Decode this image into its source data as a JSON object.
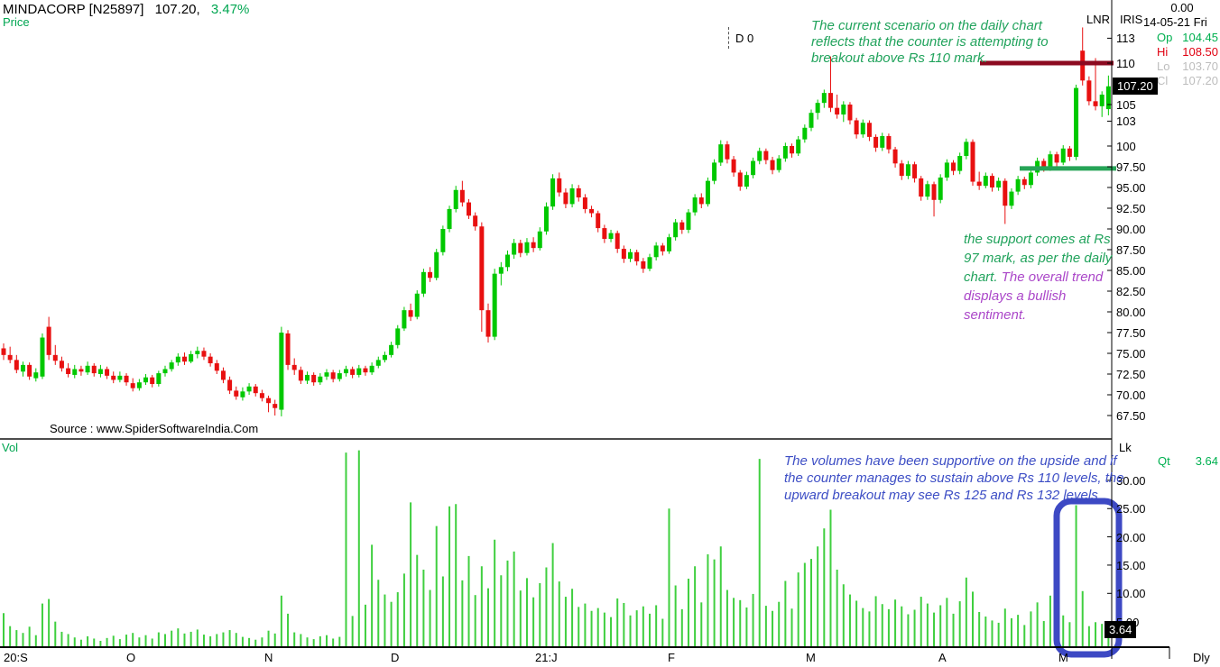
{
  "header": {
    "symbol": "MINDACORP [N25897]",
    "last": "107.20,",
    "change_pct": "3.47%",
    "panel_label": "Price",
    "volume_panel_label": "Vol"
  },
  "indicators": {
    "left": "LNR",
    "right": "IRIS"
  },
  "quote": {
    "value_top": "0.00",
    "date": "14-05-21 Fri",
    "rows": [
      {
        "label": "Op",
        "value": "104.45",
        "tone": "green"
      },
      {
        "label": "Hi",
        "value": "108.50",
        "tone": "red"
      },
      {
        "label": "Lo",
        "value": "103.70",
        "tone": "gray"
      },
      {
        "label": "Cl",
        "value": "107.20",
        "tone": "gray"
      }
    ]
  },
  "cursor_readout": "D 0",
  "source": "Source : www.SpiderSoftwareIndia.Com",
  "annotations": {
    "breakout": {
      "color": "#21a35c",
      "lines": [
        "The current scenario on the daily chart",
        "reflects that the counter is attempting to",
        "breakout above Rs 110 mark."
      ]
    },
    "support": {
      "green_color": "#21a35c",
      "purple_color": "#ab47c9",
      "lines": [
        [
          {
            "t": "the support comes at Rs",
            "c": "green"
          }
        ],
        [
          {
            "t": "97 mark, as per the daily",
            "c": "green"
          }
        ],
        [
          {
            "t": "chart. ",
            "c": "green"
          },
          {
            "t": "The overall trend",
            "c": "purple"
          }
        ],
        [
          {
            "t": "displays a bullish",
            "c": "purple"
          }
        ],
        [
          {
            "t": "sentiment.",
            "c": "purple"
          }
        ]
      ]
    },
    "volumes": {
      "color": "#3d4ec5",
      "lines": [
        "The volumes have been supportive on the upside and if",
        "the counter manages to sustain above Rs 110 levels, the",
        "upward breakout may see Rs 125 and Rs 132 levels"
      ]
    }
  },
  "price_axis": {
    "last_price_tag": "107.20",
    "ticks": [
      {
        "v": 113,
        "label": "113"
      },
      {
        "v": 110,
        "label": "110"
      },
      {
        "v": 105,
        "label": "105"
      },
      {
        "v": 103,
        "label": "103"
      },
      {
        "v": 100,
        "label": "100"
      },
      {
        "v": 97.5,
        "label": "97.50"
      },
      {
        "v": 95,
        "label": "95.00"
      },
      {
        "v": 92.5,
        "label": "92.50"
      },
      {
        "v": 90,
        "label": "90.00"
      },
      {
        "v": 87.5,
        "label": "87.50"
      },
      {
        "v": 85,
        "label": "85.00"
      },
      {
        "v": 82.5,
        "label": "82.50"
      },
      {
        "v": 80,
        "label": "80.00"
      },
      {
        "v": 77.5,
        "label": "77.50"
      },
      {
        "v": 75,
        "label": "75.00"
      },
      {
        "v": 72.5,
        "label": "72.50"
      },
      {
        "v": 70,
        "label": "70.00"
      },
      {
        "v": 67.5,
        "label": "67.50"
      }
    ]
  },
  "volume_axis": {
    "unit": "Lk",
    "qt_label": "Qt",
    "qt_value": "3.64",
    "last_volume_tag": "3.64",
    "ticks": [
      {
        "v": 30,
        "label": "30.00"
      },
      {
        "v": 25,
        "label": "25.00"
      },
      {
        "v": 20,
        "label": "20.00"
      },
      {
        "v": 15,
        "label": "15.00"
      },
      {
        "v": 10,
        "label": "10.00"
      },
      {
        "v": 5,
        "label": "5.00"
      }
    ]
  },
  "x_axis": {
    "labels": [
      "20:S",
      "O",
      "N",
      "D",
      "21:J",
      "F",
      "M",
      "A",
      "M"
    ],
    "period": "Dly"
  },
  "colors": {
    "candle_up": "#00c800",
    "candle_down": "#e81010",
    "volume_bar": "#3fcf3f",
    "resistance_line": "#8c0a20",
    "support_line": "#26a457",
    "highlight_box": "#3d49c4",
    "change_green": "#00a651"
  },
  "chart_data": {
    "type": "candlestick+volume",
    "title": "MINDACORP [N25897] daily chart with volume (Lk)",
    "timeframe": "Dly",
    "x_axis_months": [
      "Sep-20",
      "Oct-20",
      "Nov-20",
      "Dec-20",
      "Jan-21",
      "Feb-21",
      "Mar-21",
      "Apr-21",
      "May-21"
    ],
    "price_range": [
      67.5,
      113
    ],
    "volume_range_lk": [
      0,
      30
    ],
    "levels": {
      "resistance": 110,
      "support": 97.3
    },
    "highlight": {
      "type": "rounded-rect",
      "color": "#3d49c4",
      "range": "last 9 volume bars"
    },
    "last_close": 107.2,
    "last_volume_lk": 3.64,
    "columns": [
      "open",
      "high",
      "low",
      "close",
      "volume_lk"
    ],
    "candles": [
      [
        75.6,
        76.2,
        74.2,
        74.8,
        6.5
      ],
      [
        74.8,
        75.8,
        73.8,
        74.2,
        4.2
      ],
      [
        74.2,
        74.8,
        72.6,
        73.0,
        3.5
      ],
      [
        72.8,
        74.0,
        72.2,
        73.6,
        3.0
      ],
      [
        73.6,
        73.9,
        71.8,
        72.2,
        4.1
      ],
      [
        72.0,
        73.2,
        71.6,
        72.7,
        2.6
      ],
      [
        72.2,
        77.4,
        71.9,
        76.9,
        8.2
      ],
      [
        78.2,
        79.4,
        74.2,
        74.8,
        9.0
      ],
      [
        74.8,
        76.0,
        73.6,
        74.1,
        5.0
      ],
      [
        74.1,
        74.6,
        72.8,
        73.2,
        3.2
      ],
      [
        73.2,
        73.8,
        72.1,
        72.5,
        2.8
      ],
      [
        72.4,
        73.6,
        72.0,
        73.1,
        2.2
      ],
      [
        73.1,
        73.5,
        72.3,
        72.8,
        1.8
      ],
      [
        72.7,
        74.0,
        72.4,
        73.5,
        2.4
      ],
      [
        73.5,
        73.8,
        72.2,
        72.6,
        2.0
      ],
      [
        72.5,
        73.6,
        72.1,
        73.1,
        1.6
      ],
      [
        73.1,
        73.4,
        71.9,
        72.3,
        2.1
      ],
      [
        72.3,
        72.8,
        71.4,
        71.8,
        2.5
      ],
      [
        71.8,
        72.8,
        71.5,
        72.3,
        1.9
      ],
      [
        72.3,
        72.6,
        71.1,
        71.5,
        2.7
      ],
      [
        71.4,
        72.0,
        70.4,
        70.8,
        3.0
      ],
      [
        70.8,
        71.9,
        70.5,
        71.5,
        2.2
      ],
      [
        71.5,
        72.5,
        71.2,
        72.1,
        2.6
      ],
      [
        72.1,
        72.4,
        70.9,
        71.3,
        2.0
      ],
      [
        71.3,
        72.9,
        71.0,
        72.6,
        3.1
      ],
      [
        72.6,
        73.5,
        72.2,
        73.1,
        2.8
      ],
      [
        73.1,
        74.2,
        72.8,
        73.9,
        3.4
      ],
      [
        73.9,
        75.0,
        73.5,
        74.6,
        3.8
      ],
      [
        74.6,
        75.1,
        73.6,
        74.0,
        2.9
      ],
      [
        74.0,
        75.3,
        73.8,
        74.9,
        3.2
      ],
      [
        74.9,
        75.8,
        74.4,
        75.3,
        3.6
      ],
      [
        75.3,
        75.7,
        74.2,
        74.6,
        2.7
      ],
      [
        74.6,
        75.0,
        73.4,
        73.8,
        2.4
      ],
      [
        73.8,
        74.2,
        72.5,
        72.9,
        2.8
      ],
      [
        72.9,
        73.3,
        71.4,
        71.8,
        3.1
      ],
      [
        71.8,
        72.2,
        70.1,
        70.5,
        3.5
      ],
      [
        70.5,
        71.0,
        69.4,
        69.8,
        3.0
      ],
      [
        69.7,
        70.9,
        69.3,
        70.4,
        2.3
      ],
      [
        70.4,
        71.4,
        70.0,
        71.0,
        2.1
      ],
      [
        71.0,
        71.3,
        69.8,
        70.2,
        1.8
      ],
      [
        70.2,
        70.6,
        69.2,
        69.6,
        2.2
      ],
      [
        69.6,
        69.9,
        67.9,
        69.0,
        3.4
      ],
      [
        68.9,
        69.4,
        67.5,
        68.4,
        2.9
      ],
      [
        68.2,
        78.2,
        67.4,
        77.5,
        9.6
      ],
      [
        77.4,
        77.8,
        73.0,
        73.6,
        6.4
      ],
      [
        73.6,
        74.4,
        72.4,
        73.0,
        3.1
      ],
      [
        73.0,
        73.4,
        71.3,
        71.7,
        2.8
      ],
      [
        71.7,
        72.8,
        71.3,
        72.4,
        2.2
      ],
      [
        72.4,
        72.7,
        71.1,
        71.5,
        1.9
      ],
      [
        71.5,
        72.6,
        71.2,
        72.2,
        2.4
      ],
      [
        72.2,
        73.1,
        71.8,
        72.7,
        2.6
      ],
      [
        72.7,
        73.0,
        71.5,
        71.9,
        2.0
      ],
      [
        71.9,
        73.0,
        71.6,
        72.6,
        2.3
      ],
      [
        72.6,
        73.5,
        72.2,
        73.1,
        34.9
      ],
      [
        73.1,
        73.4,
        72.0,
        72.4,
        6.0
      ],
      [
        72.4,
        73.6,
        72.1,
        73.2,
        35.3
      ],
      [
        73.2,
        73.5,
        72.3,
        72.7,
        8.0
      ],
      [
        72.7,
        73.9,
        72.4,
        73.5,
        18.6
      ],
      [
        73.5,
        74.6,
        73.2,
        74.2,
        12.4
      ],
      [
        74.2,
        75.2,
        73.9,
        74.8,
        9.8
      ],
      [
        74.8,
        76.4,
        74.5,
        76.0,
        8.5
      ],
      [
        76.0,
        78.4,
        75.6,
        78.0,
        10.2
      ],
      [
        78.0,
        80.6,
        77.7,
        80.2,
        13.5
      ],
      [
        80.2,
        81.0,
        78.9,
        79.4,
        26.1
      ],
      [
        79.4,
        82.6,
        79.1,
        82.2,
        16.8
      ],
      [
        82.2,
        85.2,
        81.8,
        84.8,
        14.2
      ],
      [
        84.8,
        85.4,
        83.6,
        84.1,
        10.6
      ],
      [
        84.1,
        87.6,
        83.8,
        87.2,
        21.9
      ],
      [
        87.2,
        90.4,
        86.8,
        90.0,
        13.0
      ],
      [
        90.0,
        92.8,
        89.6,
        92.4,
        25.4
      ],
      [
        92.4,
        95.2,
        92.0,
        94.7,
        25.8
      ],
      [
        94.7,
        95.8,
        92.7,
        93.2,
        12.3
      ],
      [
        93.2,
        93.6,
        91.2,
        91.6,
        16.6
      ],
      [
        91.6,
        92.0,
        89.8,
        90.3,
        9.7
      ],
      [
        90.3,
        90.8,
        77.6,
        80.2,
        14.8
      ],
      [
        80.2,
        81.0,
        76.3,
        77.0,
        10.9
      ],
      [
        77.0,
        85.2,
        76.6,
        84.6,
        19.5
      ],
      [
        84.6,
        86.0,
        83.2,
        85.4,
        13.2
      ],
      [
        85.4,
        87.4,
        84.9,
        86.9,
        15.8
      ],
      [
        86.9,
        88.8,
        86.4,
        88.3,
        17.4
      ],
      [
        88.3,
        88.7,
        86.6,
        87.1,
        10.5
      ],
      [
        87.1,
        88.9,
        86.8,
        88.4,
        12.7
      ],
      [
        88.4,
        89.0,
        87.2,
        87.7,
        9.3
      ],
      [
        87.7,
        90.2,
        87.4,
        89.7,
        11.8
      ],
      [
        89.7,
        93.2,
        89.3,
        92.7,
        14.6
      ],
      [
        92.7,
        96.6,
        92.3,
        96.1,
        18.9
      ],
      [
        96.1,
        96.8,
        93.9,
        94.4,
        12.1
      ],
      [
        94.4,
        94.9,
        92.5,
        93.0,
        9.4
      ],
      [
        93.0,
        95.4,
        92.6,
        94.9,
        10.8
      ],
      [
        94.9,
        95.3,
        93.3,
        93.8,
        7.6
      ],
      [
        93.8,
        94.2,
        91.9,
        92.4,
        8.2
      ],
      [
        92.4,
        92.8,
        91.4,
        91.9,
        6.9
      ],
      [
        91.9,
        92.2,
        89.6,
        90.1,
        7.4
      ],
      [
        90.1,
        90.5,
        88.3,
        88.8,
        6.6
      ],
      [
        88.8,
        89.9,
        88.4,
        89.5,
        5.8
      ],
      [
        89.5,
        89.8,
        87.1,
        87.6,
        9.1
      ],
      [
        87.6,
        88.0,
        85.9,
        86.4,
        8.3
      ],
      [
        86.4,
        87.6,
        86.0,
        87.2,
        6.1
      ],
      [
        87.2,
        87.5,
        85.6,
        86.1,
        7.0
      ],
      [
        86.1,
        86.5,
        84.7,
        85.2,
        7.7
      ],
      [
        85.2,
        87.0,
        84.9,
        86.6,
        6.4
      ],
      [
        86.6,
        88.4,
        86.2,
        88.0,
        7.9
      ],
      [
        88.0,
        88.3,
        86.8,
        87.3,
        5.5
      ],
      [
        87.3,
        89.4,
        87.0,
        89.0,
        25.0
      ],
      [
        89.0,
        91.2,
        88.6,
        90.8,
        11.4
      ],
      [
        90.8,
        91.1,
        89.4,
        89.9,
        7.2
      ],
      [
        89.9,
        92.4,
        89.5,
        92.0,
        12.6
      ],
      [
        92.0,
        94.2,
        91.6,
        93.8,
        14.8
      ],
      [
        93.8,
        94.3,
        92.5,
        93.0,
        8.4
      ],
      [
        93.0,
        96.2,
        92.7,
        95.8,
        16.9
      ],
      [
        95.8,
        98.4,
        95.4,
        98.0,
        16.0
      ],
      [
        98.0,
        100.7,
        97.6,
        100.2,
        18.3
      ],
      [
        100.2,
        100.6,
        97.9,
        98.4,
        10.6
      ],
      [
        98.4,
        98.8,
        96.3,
        96.8,
        9.2
      ],
      [
        96.8,
        97.1,
        94.6,
        95.1,
        8.8
      ],
      [
        95.1,
        96.9,
        94.8,
        96.5,
        7.5
      ],
      [
        96.5,
        98.6,
        96.1,
        98.2,
        9.9
      ],
      [
        98.2,
        99.8,
        97.8,
        99.4,
        33.8
      ],
      [
        99.4,
        99.7,
        97.8,
        98.3,
        7.8
      ],
      [
        98.3,
        98.7,
        96.6,
        97.1,
        6.9
      ],
      [
        97.1,
        98.9,
        96.8,
        98.5,
        8.5
      ],
      [
        98.5,
        100.4,
        98.1,
        100.0,
        12.2
      ],
      [
        100.0,
        100.3,
        98.6,
        99.1,
        7.3
      ],
      [
        99.1,
        101.2,
        98.8,
        100.8,
        13.7
      ],
      [
        100.8,
        102.6,
        100.4,
        102.2,
        15.4
      ],
      [
        102.2,
        104.4,
        101.8,
        104.0,
        16.1
      ],
      [
        104.0,
        105.6,
        103.2,
        105.2,
        18.3
      ],
      [
        105.2,
        106.8,
        104.6,
        106.4,
        21.5
      ],
      [
        106.4,
        110.8,
        104.1,
        104.6,
        24.8
      ],
      [
        104.6,
        106.2,
        103.3,
        103.8,
        14.2
      ],
      [
        103.8,
        105.4,
        102.9,
        105.0,
        11.6
      ],
      [
        105.0,
        105.3,
        102.6,
        103.1,
        9.8
      ],
      [
        103.1,
        103.4,
        100.9,
        101.4,
        8.7
      ],
      [
        101.4,
        103.2,
        101.0,
        102.8,
        7.4
      ],
      [
        102.8,
        103.1,
        100.6,
        101.1,
        6.8
      ],
      [
        101.1,
        101.4,
        99.3,
        99.8,
        9.5
      ],
      [
        99.8,
        101.6,
        99.4,
        101.2,
        8.1
      ],
      [
        101.2,
        101.5,
        99.1,
        99.6,
        7.2
      ],
      [
        99.6,
        99.9,
        97.4,
        97.9,
        8.9
      ],
      [
        97.9,
        98.3,
        95.9,
        96.4,
        7.7
      ],
      [
        96.4,
        98.2,
        96.0,
        97.8,
        6.3
      ],
      [
        97.8,
        98.1,
        95.6,
        96.1,
        7.1
      ],
      [
        96.1,
        96.4,
        93.4,
        93.9,
        9.4
      ],
      [
        93.9,
        95.8,
        93.5,
        95.4,
        8.2
      ],
      [
        95.4,
        95.7,
        91.5,
        93.5,
        6.6
      ],
      [
        93.5,
        96.6,
        93.1,
        96.2,
        7.9
      ],
      [
        96.2,
        98.4,
        95.8,
        98.0,
        9.2
      ],
      [
        98.0,
        98.3,
        96.5,
        97.0,
        6.4
      ],
      [
        97.0,
        99.2,
        96.6,
        98.8,
        8.6
      ],
      [
        98.8,
        100.9,
        98.4,
        100.5,
        12.8
      ],
      [
        100.5,
        100.8,
        95.2,
        95.7,
        10.3
      ],
      [
        95.7,
        96.9,
        94.7,
        95.2,
        6.7
      ],
      [
        95.2,
        96.8,
        94.9,
        96.4,
        5.9
      ],
      [
        96.4,
        96.7,
        94.5,
        95.0,
        5.2
      ],
      [
        95.0,
        96.2,
        94.6,
        95.8,
        4.8
      ],
      [
        95.8,
        96.1,
        90.6,
        92.8,
        7.3
      ],
      [
        92.8,
        94.9,
        92.4,
        94.5,
        5.6
      ],
      [
        94.5,
        96.4,
        94.1,
        96.0,
        6.2
      ],
      [
        96.0,
        96.3,
        94.8,
        95.3,
        4.4
      ],
      [
        95.3,
        97.2,
        94.9,
        96.8,
        6.8
      ],
      [
        96.8,
        98.6,
        96.4,
        98.2,
        8.4
      ],
      [
        98.2,
        98.5,
        96.9,
        97.4,
        5.1
      ],
      [
        97.4,
        99.4,
        97.0,
        99.0,
        9.6
      ],
      [
        99.0,
        99.3,
        97.5,
        98.0,
        5.7
      ],
      [
        98.0,
        100.1,
        97.7,
        99.7,
        6.1
      ],
      [
        99.7,
        100.0,
        98.2,
        98.7,
        4.9
      ],
      [
        98.7,
        107.4,
        98.3,
        107.0,
        25.6
      ],
      [
        111.5,
        114.3,
        107.3,
        107.9,
        10.4
      ],
      [
        107.9,
        108.4,
        104.9,
        105.4,
        4.2
      ],
      [
        105.4,
        110.6,
        104.3,
        104.8,
        4.9
      ],
      [
        104.8,
        106.6,
        103.5,
        106.2,
        4.6
      ],
      [
        104.45,
        108.5,
        103.7,
        107.2,
        3.64
      ]
    ]
  }
}
